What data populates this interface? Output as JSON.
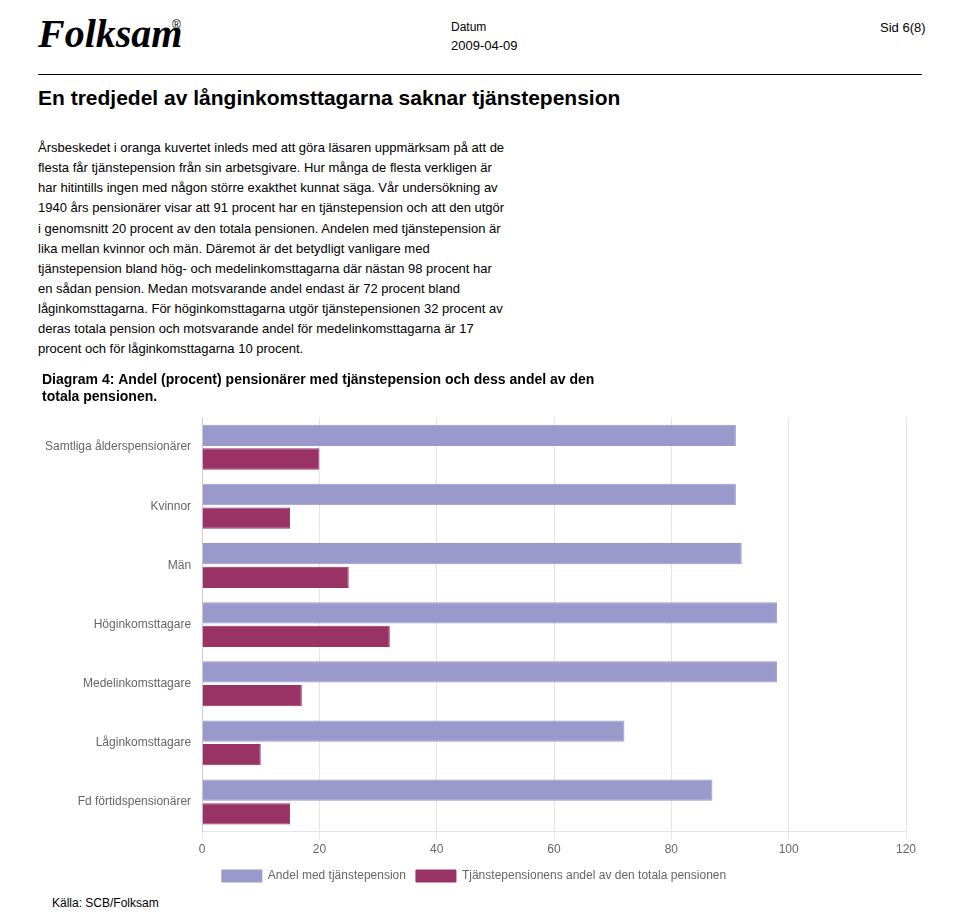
{
  "chart_data": {
    "type": "bar",
    "orientation": "horizontal",
    "title": "Diagram 4: Andel (procent) pensionärer med tjänstepension och dess andel av den\ntotala pensionen.",
    "annotations": [
      "Folksam",
      "®",
      "Datum",
      "2009-04-09",
      "Sid 6(8)",
      "En tredjedel av långinkomsttagarna saknar tjänstepension",
      "Årsbeskedet i oranga kuvertet inleds med att göra läsaren uppmärksam på att de\nflesta får tjänstepension från sin arbetsgivare. Hur många de flesta verkligen är\nhar hitintills ingen med någon större exakthet kunnat säga. Vår undersökning av\n1940 års pensionärer visar att 91 procent har en tjänstepension och att den utgör\ni genomsnitt 20 procent av den totala pensionen. Andelen med tjänstepension är\nlika mellan kvinnor och män. Däremot är det betydligt vanligare med\ntjänstepension bland hög- och medelinkomsttagarna där nästan 98 procent har\nen sådan pension. Medan motsvarande andel endast är 72 procent bland\nlåginkomsttagarna. För höginkomsttagarna utgör tjänstepensionen 32 procent av\nderas totala pension och motsvarande andel för medelinkomsttagarna är 17\nprocent och för låginkomsttagarna 10 procent.",
      "Källa: SCB/Folksam"
    ],
    "categories": [
      "Samtliga ålderspensionärer",
      "Kvinnor",
      "Män",
      "Höginkomsttagare",
      "Medelinkomsttagare",
      "Låginkomsttagare",
      "Fd förtidspensionärer"
    ],
    "series": [
      {
        "name": "Andel med tjänstepension",
        "color": "#9999CC",
        "values": [
          91,
          91,
          92,
          98,
          98,
          72,
          87
        ]
      },
      {
        "name": "Tjänstepensionens andel av den totala pensionen",
        "color": "#993366",
        "values": [
          20,
          15,
          25,
          32,
          17,
          10,
          15
        ]
      }
    ],
    "xlim": [
      0,
      120
    ],
    "xticks": [
      0,
      20,
      40,
      60,
      80,
      100,
      120
    ],
    "grid": true,
    "legend": "bottom"
  }
}
